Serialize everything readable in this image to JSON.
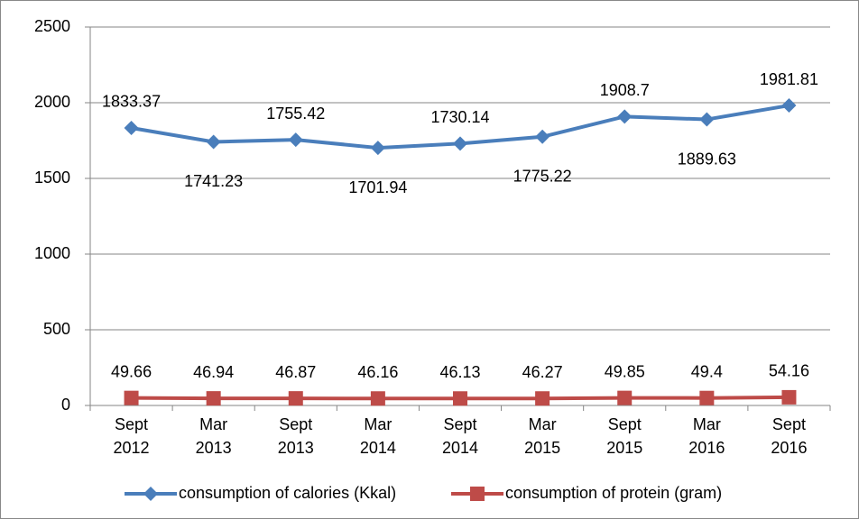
{
  "chart_data": {
    "type": "line",
    "categories": [
      "Sept 2012",
      "Mar 2013",
      "Sept 2013",
      "Mar 2014",
      "Sept 2014",
      "Mar 2015",
      "Sept 2015",
      "Mar 2016",
      "Sept 2016"
    ],
    "series": [
      {
        "name": "consumption of calories (Kkal)",
        "color": "#4a7ebb",
        "marker": "diamond",
        "values": [
          1833.37,
          1741.23,
          1755.42,
          1701.94,
          1730.14,
          1775.22,
          1908.7,
          1889.63,
          1981.81
        ]
      },
      {
        "name": "consumption of protein (gram)",
        "color": "#be4b48",
        "marker": "square",
        "values": [
          49.66,
          46.94,
          46.87,
          46.16,
          46.13,
          46.27,
          49.85,
          49.4,
          54.16
        ]
      }
    ],
    "ylim": [
      0,
      2500
    ],
    "yticks": [
      0,
      500,
      1000,
      1500,
      2000,
      2500
    ],
    "grid": true,
    "legend": "bottom"
  }
}
